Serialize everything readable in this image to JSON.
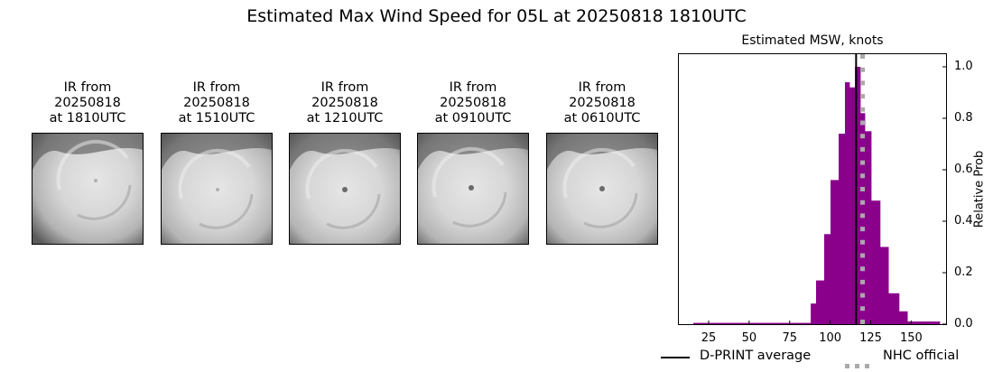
{
  "figure": {
    "suptitle": "Estimated Max Wind Speed for 05L at 20250818 1810UTC"
  },
  "ir_images": [
    {
      "line1": "IR from",
      "line2": "20250818",
      "line3": "at 1810UTC",
      "eye": "faint"
    },
    {
      "line1": "IR from",
      "line2": "20250818",
      "line3": "at 1510UTC",
      "eye": "faint"
    },
    {
      "line1": "IR from",
      "line2": "20250818",
      "line3": "at 1210UTC",
      "eye": "clear"
    },
    {
      "line1": "IR from",
      "line2": "20250818",
      "line3": "at 0910UTC",
      "eye": "clear"
    },
    {
      "line1": "IR from",
      "line2": "20250818",
      "line3": "at 0610UTC",
      "eye": "clear"
    }
  ],
  "colors": {
    "histogram": "#8b008b",
    "dprint_line": "#000000",
    "nhc_line": "#aaaaaa"
  },
  "chart_data": {
    "type": "bar",
    "title": "Estimated MSW, knots",
    "xlabel": "",
    "ylabel": "Relative Prob",
    "xlim": [
      6,
      172
    ],
    "ylim": [
      0,
      1.05
    ],
    "xticks": [
      25,
      50,
      75,
      100,
      125,
      150
    ],
    "yticks": [
      0.0,
      0.2,
      0.4,
      0.6,
      0.8,
      1.0
    ],
    "ytick_labels": [
      "0.0",
      "0.2",
      "0.4",
      "0.6",
      "0.8",
      "1.0"
    ],
    "yaxis_side": "right",
    "grid": false,
    "bins": [
      {
        "x0": 15.5,
        "x1": 88.0,
        "value": 0.005
      },
      {
        "x0": 88.0,
        "x1": 91.3,
        "value": 0.08
      },
      {
        "x0": 91.3,
        "x1": 96.3,
        "value": 0.17
      },
      {
        "x0": 96.3,
        "x1": 100.2,
        "value": 0.35
      },
      {
        "x0": 100.2,
        "x1": 105.2,
        "value": 0.56
      },
      {
        "x0": 105.2,
        "x1": 109.1,
        "value": 0.74
      },
      {
        "x0": 109.1,
        "x1": 111.9,
        "value": 0.94
      },
      {
        "x0": 111.9,
        "x1": 115.3,
        "value": 0.92
      },
      {
        "x0": 115.3,
        "x1": 118.6,
        "value": 1.0
      },
      {
        "x0": 118.6,
        "x1": 121.4,
        "value": 0.82
      },
      {
        "x0": 121.4,
        "x1": 125.3,
        "value": 0.75
      },
      {
        "x0": 125.3,
        "x1": 130.8,
        "value": 0.48
      },
      {
        "x0": 130.8,
        "x1": 135.9,
        "value": 0.3
      },
      {
        "x0": 135.9,
        "x1": 142.5,
        "value": 0.12
      },
      {
        "x0": 142.5,
        "x1": 147.6,
        "value": 0.05
      },
      {
        "x0": 147.6,
        "x1": 167.6,
        "value": 0.01
      }
    ],
    "vlines": [
      {
        "name": "D-PRINT average",
        "x": 116,
        "style": "solid",
        "color": "#000000"
      },
      {
        "name": "NHC official",
        "x": 120,
        "style": "dotted",
        "color": "#aaaaaa"
      }
    ],
    "legend": {
      "position": "below",
      "entries": [
        "D-PRINT average",
        "NHC official"
      ]
    }
  }
}
